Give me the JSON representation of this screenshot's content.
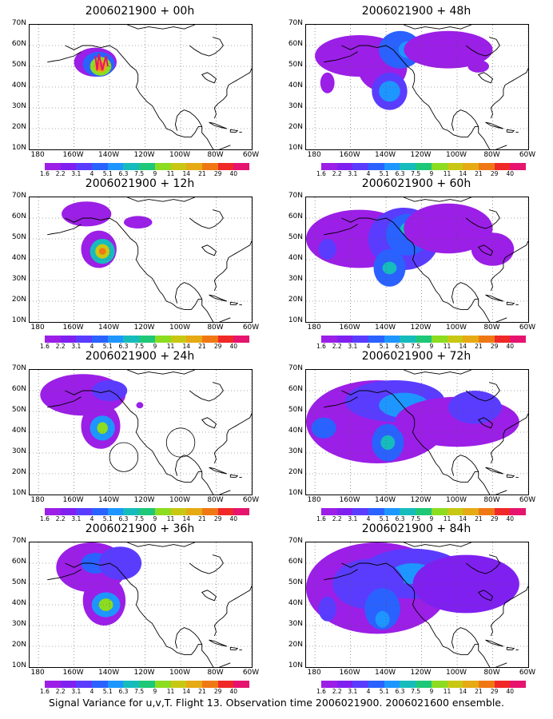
{
  "caption": "Signal Variance for u,v,T. Flight 13. Observation time 2006021900. 2006021600 ensemble.",
  "lat_labels": [
    "70N",
    "60N",
    "50N",
    "40N",
    "30N",
    "20N",
    "10N"
  ],
  "lon_labels": [
    "180",
    "160W",
    "140W",
    "120W",
    "100W",
    "80W",
    "60W"
  ],
  "colorbar": {
    "labels": [
      "1.6",
      "2.2",
      "3.1",
      "4",
      "5.1",
      "6.3",
      "7.5",
      "9",
      "11",
      "14",
      "21",
      "29",
      "40"
    ],
    "colors": [
      "#9b1fe6",
      "#7f20f0",
      "#5a3cff",
      "#2a62ff",
      "#1e96ff",
      "#16bcbc",
      "#1ec878",
      "#8cdc20",
      "#c8c814",
      "#e6aa14",
      "#f07814",
      "#f02828",
      "#e6146e"
    ]
  },
  "panels": [
    {
      "title": "2006021900 + 00h",
      "col": 0,
      "row": 0
    },
    {
      "title": "2006021900 + 48h",
      "col": 1,
      "row": 0
    },
    {
      "title": "2006021900 + 12h",
      "col": 0,
      "row": 1
    },
    {
      "title": "2006021900 + 60h",
      "col": 1,
      "row": 1
    },
    {
      "title": "2006021900 + 24h",
      "col": 0,
      "row": 2
    },
    {
      "title": "2006021900 + 72h",
      "col": 1,
      "row": 2
    },
    {
      "title": "2006021900 + 36h",
      "col": 0,
      "row": 3
    },
    {
      "title": "2006021900 + 84h",
      "col": 1,
      "row": 3
    }
  ]
}
